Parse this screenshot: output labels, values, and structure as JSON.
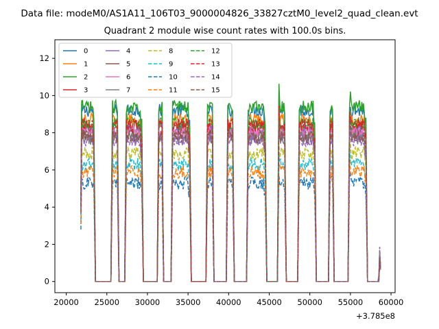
{
  "chart_data": {
    "type": "line",
    "suptitle": "Data file: modeM0/AS1A11_106T03_9000004826_33827cztM0_level2_quad_clean.evt",
    "title": "Quadrant 2 module wise count rates with 100.0s bins.",
    "xlabel": "",
    "ylabel": "",
    "x_offset_label": "+3.785e8",
    "xlim": [
      18600,
      60500
    ],
    "ylim": [
      -0.6,
      13.0
    ],
    "xticks": [
      20000,
      25000,
      30000,
      35000,
      40000,
      45000,
      50000,
      55000,
      60000
    ],
    "xtick_labels": [
      "20000",
      "25000",
      "30000",
      "35000",
      "40000",
      "45000",
      "50000",
      "55000",
      "60000"
    ],
    "yticks": [
      0,
      2,
      4,
      6,
      8,
      10,
      12
    ],
    "ytick_labels": [
      "0",
      "2",
      "4",
      "6",
      "8",
      "10",
      "12"
    ],
    "grid": false,
    "legend_position": "top-left",
    "legend_columns": 4,
    "segments": [
      {
        "start": 21800,
        "end": 23500
      },
      {
        "start": 25600,
        "end": 26400
      },
      {
        "start": 27300,
        "end": 29400
      },
      {
        "start": 31300,
        "end": 31900
      },
      {
        "start": 33000,
        "end": 35300
      },
      {
        "start": 37300,
        "end": 38100
      },
      {
        "start": 39800,
        "end": 40600
      },
      {
        "start": 42300,
        "end": 44600
      },
      {
        "start": 46100,
        "end": 47000
      },
      {
        "start": 48600,
        "end": 50700
      },
      {
        "start": 52400,
        "end": 52900
      },
      {
        "start": 54800,
        "end": 57000
      },
      {
        "start": 58500,
        "end": 58700
      }
    ],
    "segment_peaks": [
      1.0,
      1.13,
      1.0,
      1.08,
      1.0,
      1.06,
      1.05,
      1.0,
      1.12,
      1.0,
      1.22,
      1.05,
      0.2
    ],
    "series": [
      {
        "name": "0",
        "color": "#1f77b4",
        "dash": "solid",
        "level": 9.2
      },
      {
        "name": "1",
        "color": "#ff7f0e",
        "dash": "solid",
        "level": 8.7
      },
      {
        "name": "2",
        "color": "#2ca02c",
        "dash": "solid",
        "level": 9.4
      },
      {
        "name": "3",
        "color": "#d62728",
        "dash": "solid",
        "level": 8.3
      },
      {
        "name": "4",
        "color": "#9467bd",
        "dash": "solid",
        "level": 8.1
      },
      {
        "name": "5",
        "color": "#8c564b",
        "dash": "solid",
        "level": 7.9
      },
      {
        "name": "6",
        "color": "#e377c2",
        "dash": "solid",
        "level": 8.0
      },
      {
        "name": "7",
        "color": "#7f7f7f",
        "dash": "solid",
        "level": 7.7
      },
      {
        "name": "8",
        "color": "#bcbd22",
        "dash": "dashed",
        "level": 6.9
      },
      {
        "name": "9",
        "color": "#17becf",
        "dash": "dashed",
        "level": 6.3
      },
      {
        "name": "10",
        "color": "#1f77b4",
        "dash": "dashed",
        "level": 5.3
      },
      {
        "name": "11",
        "color": "#ff7f0e",
        "dash": "dashed",
        "level": 5.9
      },
      {
        "name": "12",
        "color": "#2ca02c",
        "dash": "dashed",
        "level": 8.5
      },
      {
        "name": "13",
        "color": "#d62728",
        "dash": "dashed",
        "level": 8.4
      },
      {
        "name": "14",
        "color": "#9467bd",
        "dash": "dashed",
        "level": 7.6
      },
      {
        "name": "15",
        "color": "#8c564b",
        "dash": "dashed",
        "level": 7.8
      }
    ]
  }
}
